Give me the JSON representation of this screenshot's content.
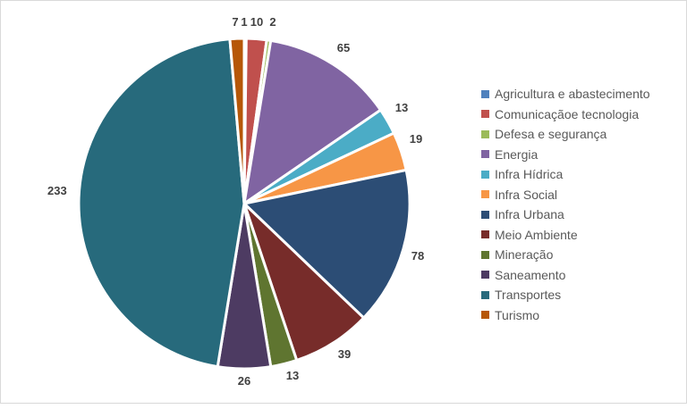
{
  "chart_data": {
    "type": "pie",
    "title": "",
    "legend_position": "right",
    "categories": [
      "Agricultura e abastecimento",
      "Comunicaçãoe tecnologia",
      "Defesa e segurança",
      "Energia",
      "Infra Hídrica",
      "Infra Social",
      "Infra Urbana",
      "Meio Ambiente",
      "Mineração",
      "Saneamento",
      "Transportes",
      "Turismo"
    ],
    "values": [
      1,
      10,
      2,
      65,
      13,
      19,
      78,
      39,
      13,
      26,
      233,
      7
    ],
    "colors": [
      "#4f81bd",
      "#c0504d",
      "#9bbb59",
      "#8064a2",
      "#4bacc6",
      "#f79646",
      "#2c4d75",
      "#772c2a",
      "#5f7530",
      "#4d3b62",
      "#276a7c",
      "#b65708"
    ]
  }
}
